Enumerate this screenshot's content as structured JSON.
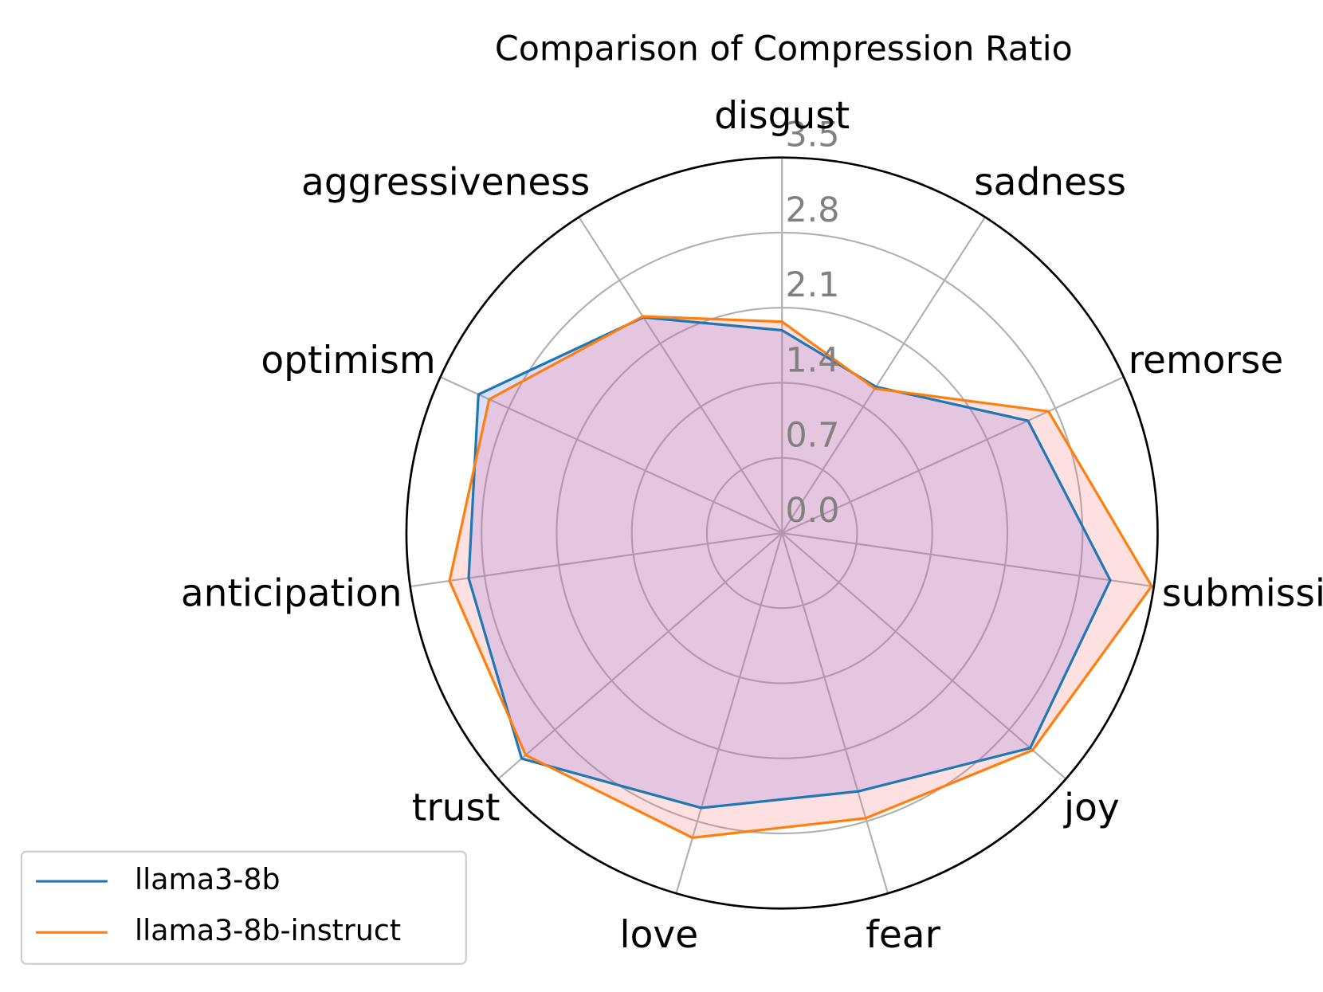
{
  "chart_data": {
    "type": "radar",
    "title": "Comparison of Compression Ratio",
    "categories": [
      "disgust",
      "sadness",
      "remorse",
      "submission",
      "joy",
      "fear",
      "love",
      "trust",
      "anticipation",
      "optimism",
      "aggressiveness"
    ],
    "series": [
      {
        "name": "llama3-8b",
        "color": "#1f77b4",
        "fill": "#6a6aff",
        "values": [
          1.89,
          1.62,
          2.52,
          3.09,
          3.06,
          2.51,
          2.67,
          3.21,
          2.95,
          3.11,
          2.39
        ]
      },
      {
        "name": "llama3-8b-instruct",
        "color": "#ff7f0e",
        "fill": "#ff7070",
        "values": [
          1.97,
          1.6,
          2.73,
          3.48,
          3.09,
          2.77,
          2.96,
          3.16,
          3.13,
          3.0,
          2.4
        ]
      }
    ],
    "ylim": [
      0,
      3.5
    ],
    "yticks": [
      {
        "value": 0,
        "label": "0.0"
      },
      0.7,
      1.4,
      2.1,
      2.8,
      3.5
    ],
    "grid": true,
    "legend": "lower left"
  }
}
